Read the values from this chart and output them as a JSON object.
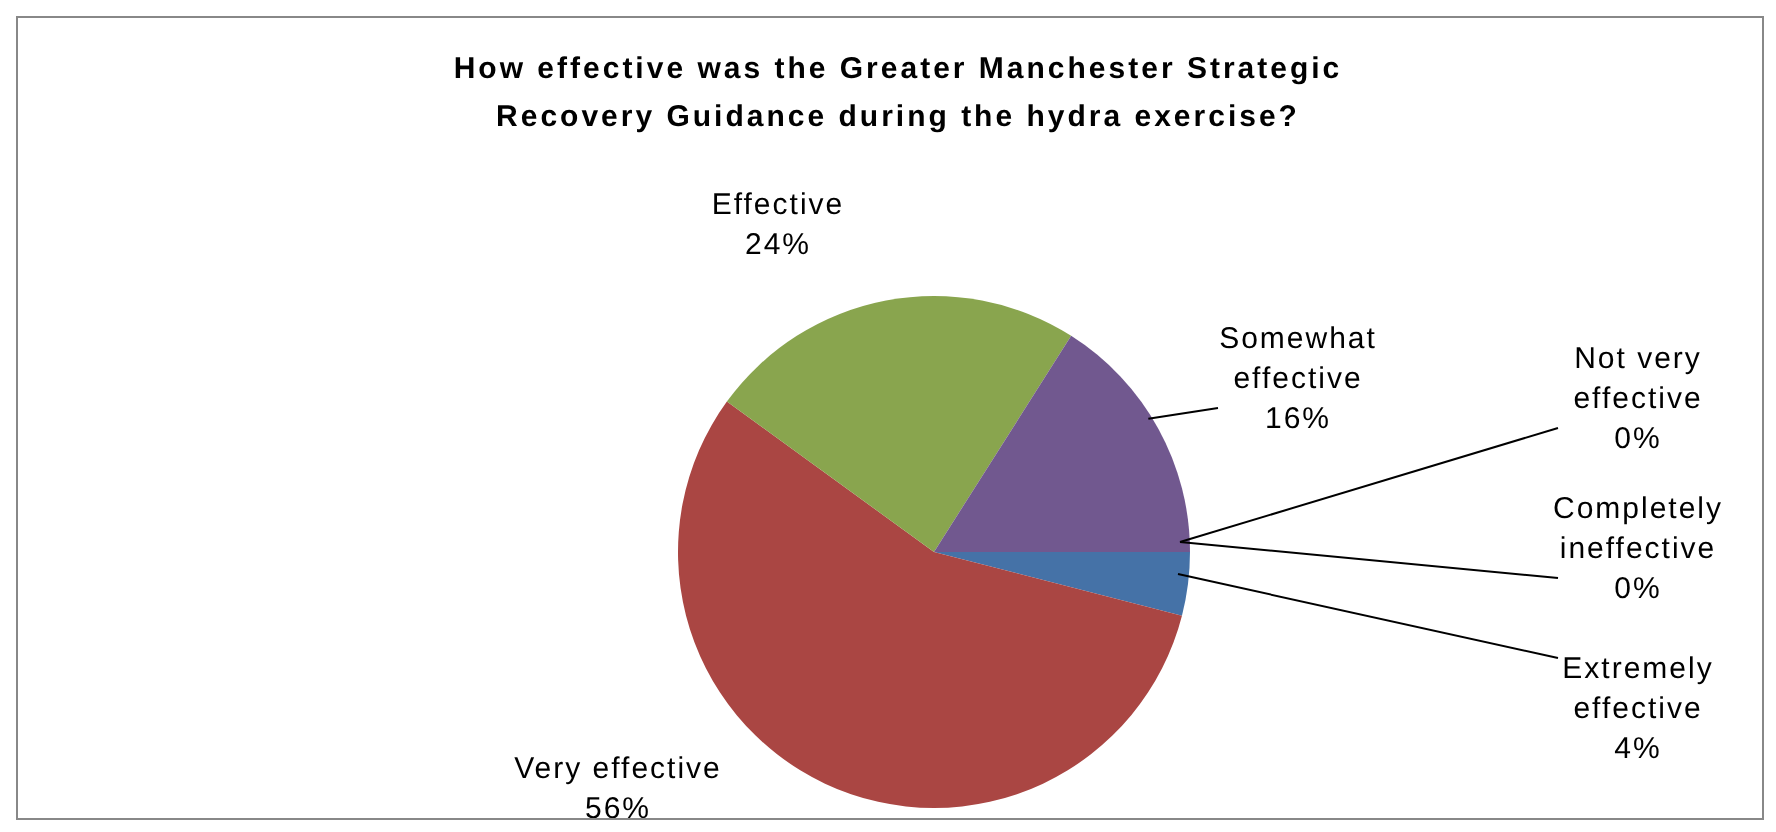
{
  "chart_data": {
    "type": "pie",
    "title": "How effective was the Greater Manchester Strategic Recovery Guidance during the hydra exercise?",
    "categories": [
      "Extremely effective",
      "Very effective",
      "Effective",
      "Somewhat effective",
      "Not very effective",
      "Completely ineffective"
    ],
    "values": [
      4,
      56,
      24,
      16,
      0,
      0
    ],
    "colors": [
      "#4572a7",
      "#aa4643",
      "#89a54e",
      "#71588f",
      "#4198af",
      "#db843d"
    ],
    "value_labels": [
      "4%",
      "56%",
      "24%",
      "16%",
      "0%",
      "0%"
    ]
  }
}
